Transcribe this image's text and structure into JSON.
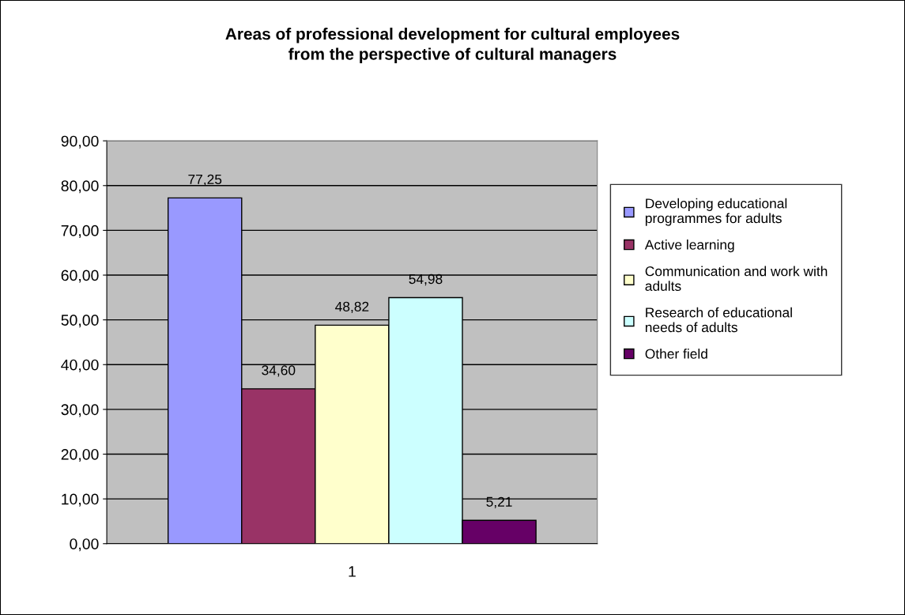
{
  "chart_data": {
    "type": "bar",
    "title": "Areas of professional development for cultural employees from the perspective of cultural managers",
    "categories": [
      "1"
    ],
    "series": [
      {
        "name": "Developing educational programmes for adults",
        "color": "#9999ff",
        "values": [
          77.25
        ],
        "value_labels": [
          "77,25"
        ]
      },
      {
        "name": "Active learning",
        "color": "#993366",
        "values": [
          34.6
        ],
        "value_labels": [
          "34,60"
        ]
      },
      {
        "name": "Communication and work with adults",
        "color": "#ffffcc",
        "values": [
          48.82
        ],
        "value_labels": [
          "48,82"
        ]
      },
      {
        "name": "Research of educational needs of adults",
        "color": "#ccffff",
        "values": [
          54.98
        ],
        "value_labels": [
          "54,98"
        ]
      },
      {
        "name": "Other field",
        "color": "#660066",
        "values": [
          5.21
        ],
        "value_labels": [
          "5,21"
        ]
      }
    ],
    "ylim": [
      0,
      90
    ],
    "yticks": [
      {
        "value": 0,
        "label": "0,00"
      },
      {
        "value": 10,
        "label": "10,00"
      },
      {
        "value": 20,
        "label": "20,00"
      },
      {
        "value": 30,
        "label": "30,00"
      },
      {
        "value": 40,
        "label": "40,00"
      },
      {
        "value": 50,
        "label": "50,00"
      },
      {
        "value": 60,
        "label": "60,00"
      },
      {
        "value": 70,
        "label": "70,00"
      },
      {
        "value": 80,
        "label": "80,00"
      },
      {
        "value": 90,
        "label": "90,00"
      }
    ],
    "grid": "y",
    "legend": "right"
  }
}
